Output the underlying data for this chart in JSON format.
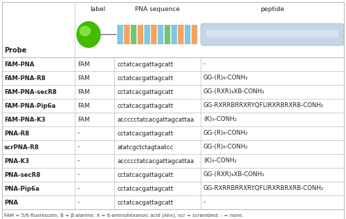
{
  "footnote": "FAM = 5/6-fluorescein, B = β-alanine, X = 6-aminohexanoic acid (Ahx), scr = scrambled. - = none.",
  "rows": [
    [
      "FAM-PNA",
      "FAM",
      "cctatcacgattagcatt",
      "-"
    ],
    [
      "FAM-PNA-R8",
      "FAM",
      "cctatcacgattagcatt",
      "GG-(R)₈-CONH₂"
    ],
    [
      "FAM-PNA-secR8",
      "FAM",
      "cctatcacgattagcatt",
      "GG-(RXR)₄XB-CONH₂"
    ],
    [
      "FAM-PNA-Pip6a",
      "FAM",
      "cctatcacgattagcatt",
      "GG-RXRRBRRXRYQFLIRXRBRXRB-CONH₂"
    ],
    [
      "FAM-PNA-K3",
      "FAM",
      "accccctatcacgattagcattaa",
      "(K)₃-CONH₂"
    ],
    [
      "PNA-R8",
      "-",
      "cctatcacgattagcatt",
      "GG-(R)₈-CONH₂"
    ],
    [
      "scrPNA-R8",
      "-",
      "atatcgctctagtaatcc",
      "GG-(R)₈-CONH₂"
    ],
    [
      "PNA-K3",
      "-",
      "accccctatcacgattagcattaa",
      "(K)₃-CONH₂"
    ],
    [
      "PNA-secR8",
      "-",
      "cctatcacgattagcatt",
      "GG-(RXR)₄XB-CONH₂"
    ],
    [
      "PNA-Pip6a",
      "-",
      "cctatcacgattagcatt",
      "GG-RXRRBRRXRYQFLIRXRBRXRB-CONH₂"
    ],
    [
      "PNA",
      "-",
      "cctatcacgattagcatt",
      "-"
    ]
  ],
  "pna_colors": [
    "#7ec8e3",
    "#f4a460",
    "#74c476",
    "#f4a460",
    "#7ec8e3",
    "#f4a460",
    "#7ec8e3",
    "#74c476",
    "#7ec8e3",
    "#f4a460",
    "#7ec8e3",
    "#f4a460"
  ],
  "bg_color": "#ffffff",
  "grid_color": "#bbbbbb",
  "text_color": "#222222"
}
